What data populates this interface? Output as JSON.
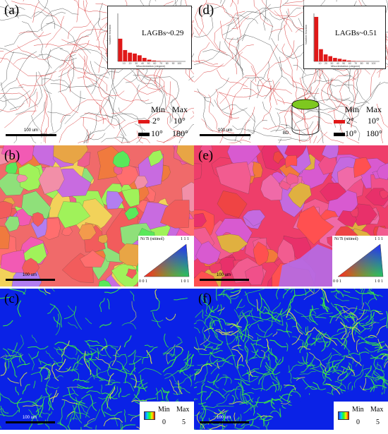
{
  "panels": {
    "a": {
      "label": "(a)",
      "scale": "100 um",
      "lagbs": "LAGBs~0.29"
    },
    "d": {
      "label": "(d)",
      "scale": "100 um",
      "lagbs": "LAGBs~0.51"
    },
    "b": {
      "label": "(b)",
      "scale": "100 um"
    },
    "e": {
      "label": "(e)",
      "scale": "100 um"
    },
    "c": {
      "label": "(c)",
      "scale": "100 um"
    },
    "f": {
      "label": "(f)",
      "scale": "100 um"
    }
  },
  "histogram": {
    "ylabel": "Number fraction",
    "xlabel": "Misorientation (degree)",
    "xticks": [
      "10",
      "20",
      "30",
      "40",
      "50",
      "60",
      "70",
      "80",
      "90",
      "100"
    ],
    "a_values": [
      0.26,
      0.13,
      0.1,
      0.09,
      0.07,
      0.04,
      0.02,
      0.01,
      0.005,
      0.003,
      0.002,
      0.001
    ],
    "d_values": [
      0.51,
      0.14,
      0.08,
      0.06,
      0.04,
      0.03,
      0.02,
      0.01,
      0.005,
      0.003,
      0.002,
      0.001
    ],
    "bar_color": "#e01818"
  },
  "gb_legend": {
    "min_label": "Min",
    "max_label": "Max",
    "row1_min": "2°",
    "row1_max": "10°",
    "row2_min": "10°",
    "row2_max": "180°",
    "row1_color": "#e01818",
    "row2_color": "#000000"
  },
  "sample": {
    "bd_label": "BD"
  },
  "ipf_key": {
    "phase": "Ni Ti  (nitinol)",
    "corner_top": "1 1 1",
    "corner_left": "0 0 1",
    "corner_right": "1 0 1"
  },
  "kam_key": {
    "min_label": "Min",
    "max_label": "Max",
    "min_value": "0",
    "max_value": "5"
  }
}
